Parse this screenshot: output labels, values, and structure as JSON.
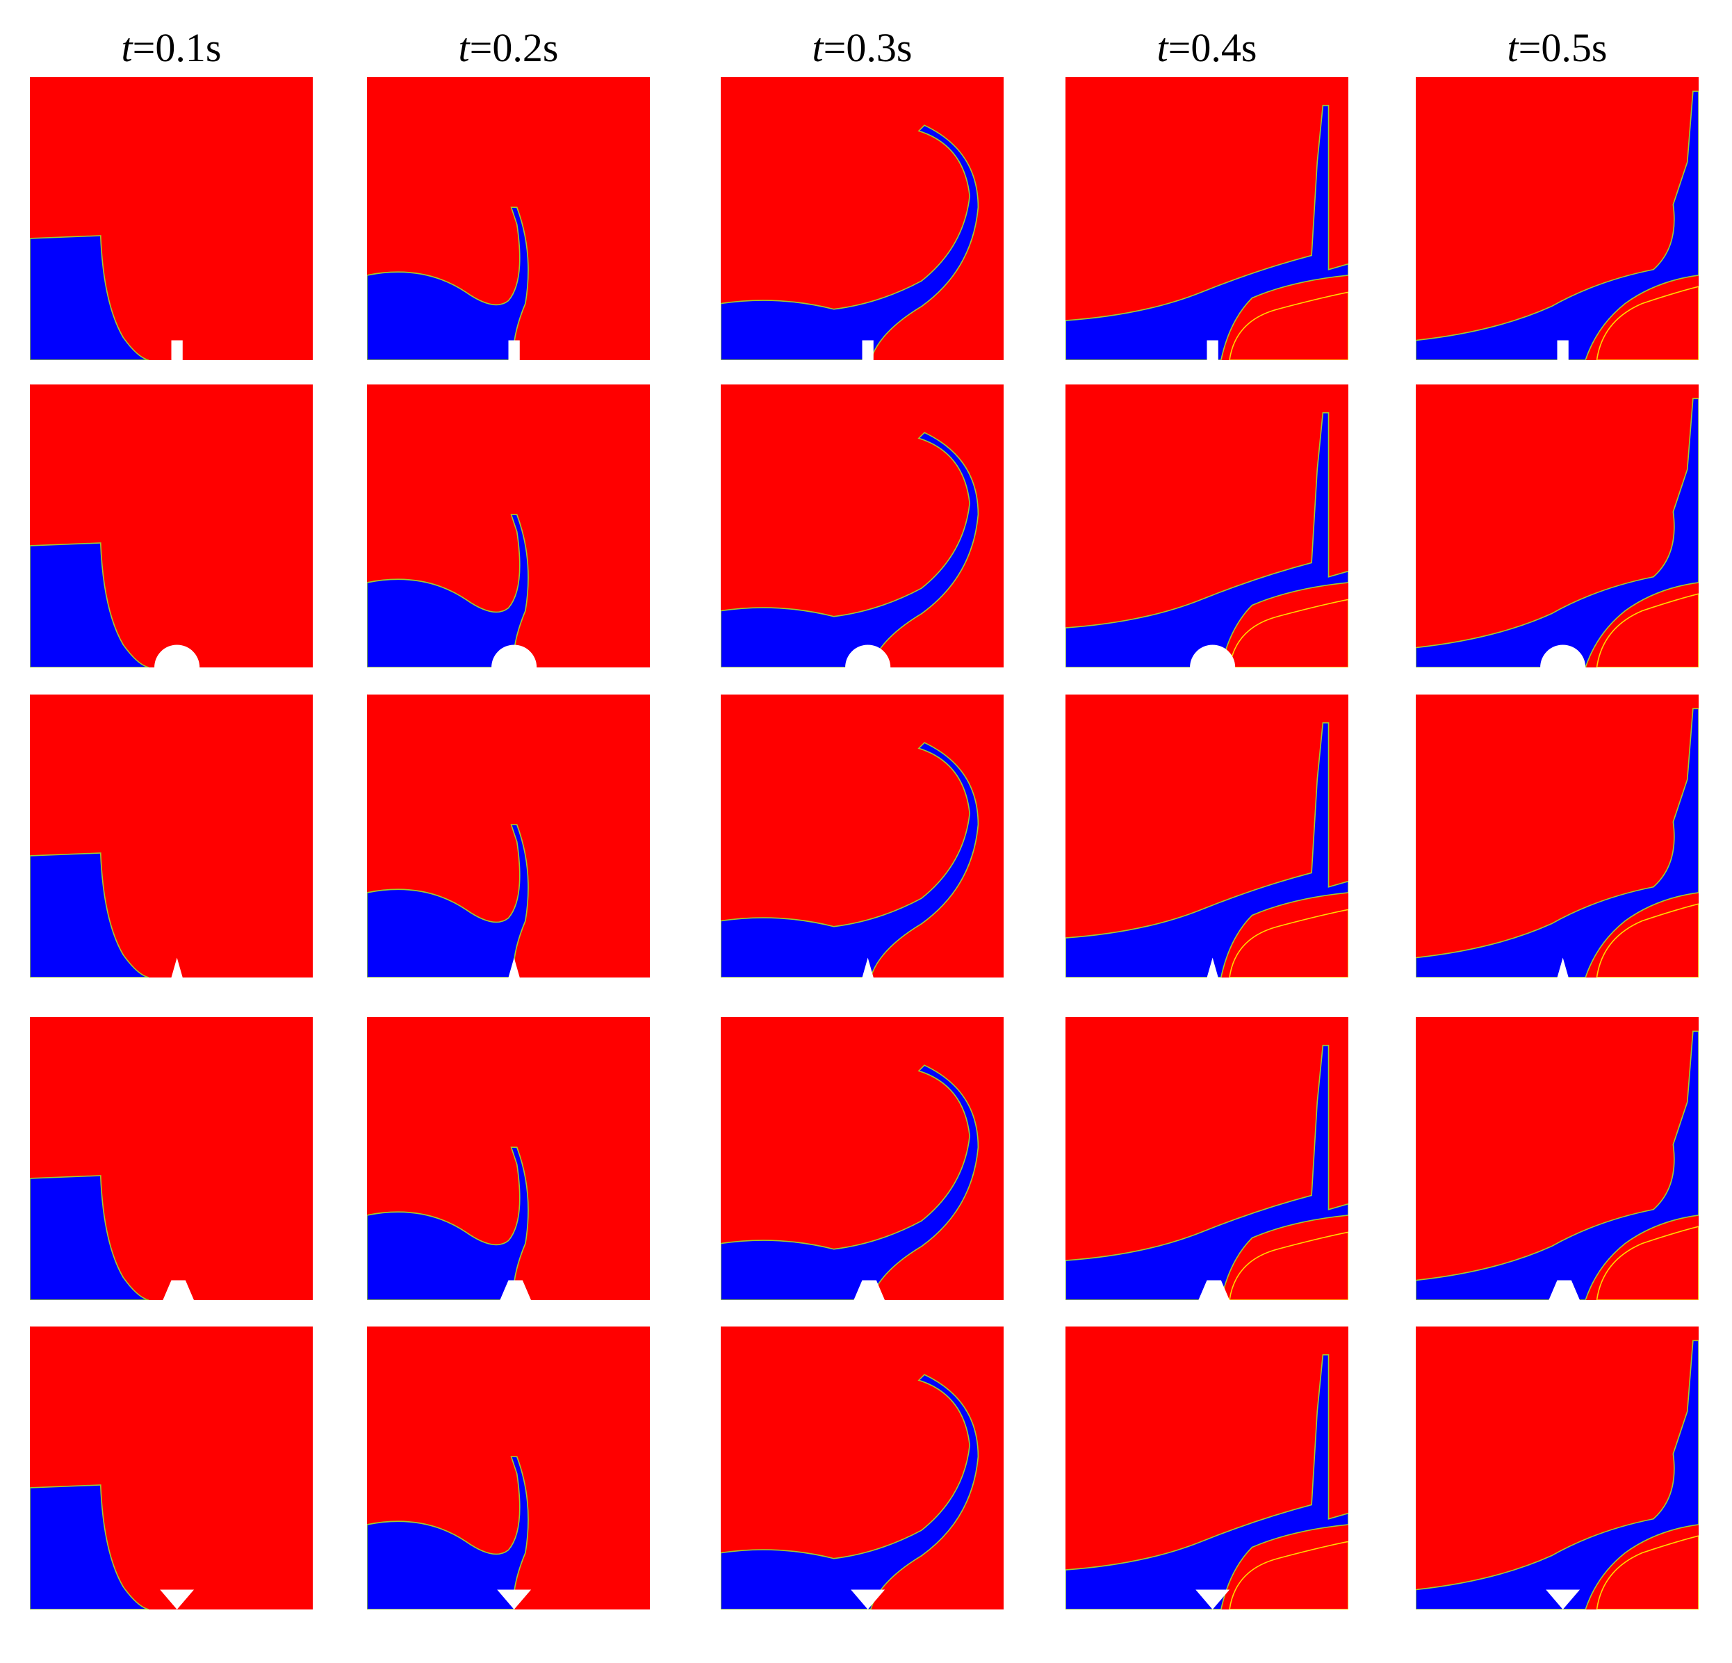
{
  "columns": [
    {
      "symbol": "t",
      "text": "=0.1s"
    },
    {
      "symbol": "t",
      "text": "=0.2s"
    },
    {
      "symbol": "t",
      "text": "=0.3s"
    },
    {
      "symbol": "t",
      "text": "=0.4s"
    },
    {
      "symbol": "t",
      "text": "=0.5s"
    }
  ]
}
